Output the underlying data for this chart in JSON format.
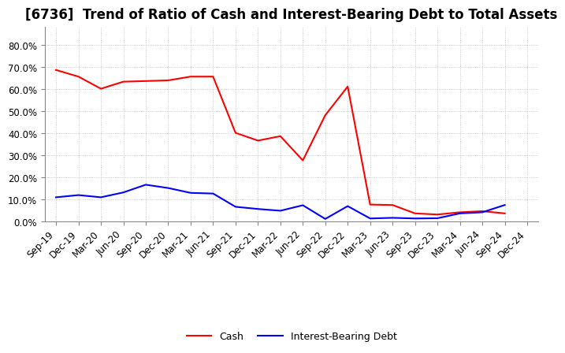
{
  "title": "[6736]  Trend of Ratio of Cash and Interest-Bearing Debt to Total Assets",
  "x_labels": [
    "Sep-19",
    "Dec-19",
    "Mar-20",
    "Jun-20",
    "Sep-20",
    "Dec-20",
    "Mar-21",
    "Jun-21",
    "Sep-21",
    "Dec-21",
    "Mar-22",
    "Jun-22",
    "Sep-22",
    "Dec-22",
    "Mar-23",
    "Jun-23",
    "Sep-23",
    "Dec-23",
    "Mar-24",
    "Jun-24",
    "Sep-24",
    "Dec-24"
  ],
  "cash": [
    0.685,
    0.655,
    0.6,
    0.632,
    0.635,
    0.638,
    0.655,
    0.655,
    0.4,
    0.365,
    0.385,
    0.275,
    0.48,
    0.61,
    0.075,
    0.073,
    0.035,
    0.03,
    0.04,
    0.045,
    0.035,
    null
  ],
  "ibd": [
    0.108,
    0.118,
    0.108,
    0.13,
    0.165,
    0.15,
    0.128,
    0.125,
    0.065,
    0.055,
    0.047,
    0.072,
    0.01,
    0.068,
    0.012,
    0.015,
    0.012,
    0.013,
    0.035,
    0.04,
    0.073,
    null
  ],
  "cash_color": "#ff0000",
  "ibd_color": "#0000ff",
  "ylim": [
    0.0,
    0.88
  ],
  "yticks": [
    0.0,
    0.1,
    0.2,
    0.3,
    0.4,
    0.5,
    0.6,
    0.7,
    0.8
  ],
  "background_color": "#ffffff",
  "grid_color": "#bbbbbb",
  "title_fontsize": 12,
  "legend_fontsize": 9,
  "tick_fontsize": 8.5
}
